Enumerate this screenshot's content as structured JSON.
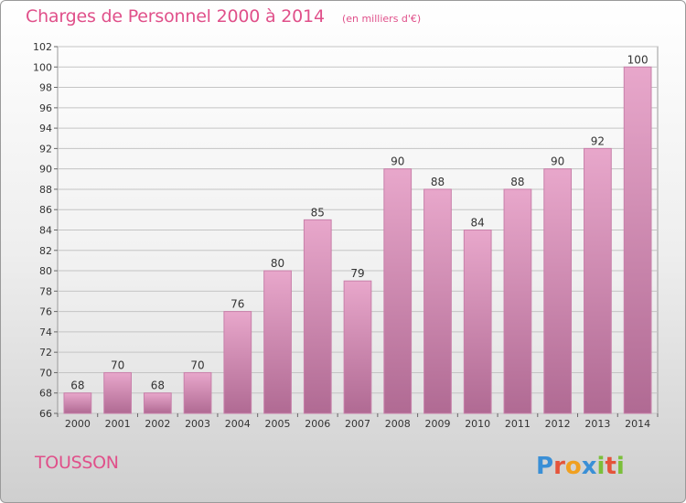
{
  "header": {
    "title": "Charges de Personnel 2000 à 2014",
    "subtitle": "(en milliers d'€)"
  },
  "footer": {
    "town": "TOUSSON",
    "logo_text": "Proxiti"
  },
  "colors": {
    "title": "#e0508a",
    "bar_top": "#e8a7cb",
    "bar_bottom": "#b06a93",
    "bar_edge": "#c880aa"
  },
  "chart_data": {
    "type": "bar",
    "categories": [
      "2000",
      "2001",
      "2002",
      "2003",
      "2004",
      "2005",
      "2006",
      "2007",
      "2008",
      "2009",
      "2010",
      "2011",
      "2012",
      "2013",
      "2014"
    ],
    "values": [
      68,
      70,
      68,
      70,
      76,
      80,
      85,
      79,
      90,
      88,
      84,
      88,
      90,
      92,
      100
    ],
    "title": "Charges de Personnel 2000 à 2014",
    "subtitle": "(en milliers d'€)",
    "xlabel": "",
    "ylabel": "",
    "ylim": [
      66,
      102
    ],
    "yticks": [
      66,
      68,
      70,
      72,
      74,
      76,
      78,
      80,
      82,
      84,
      86,
      88,
      90,
      92,
      94,
      96,
      98,
      100,
      102
    ],
    "grid": true,
    "data_labels": true
  }
}
